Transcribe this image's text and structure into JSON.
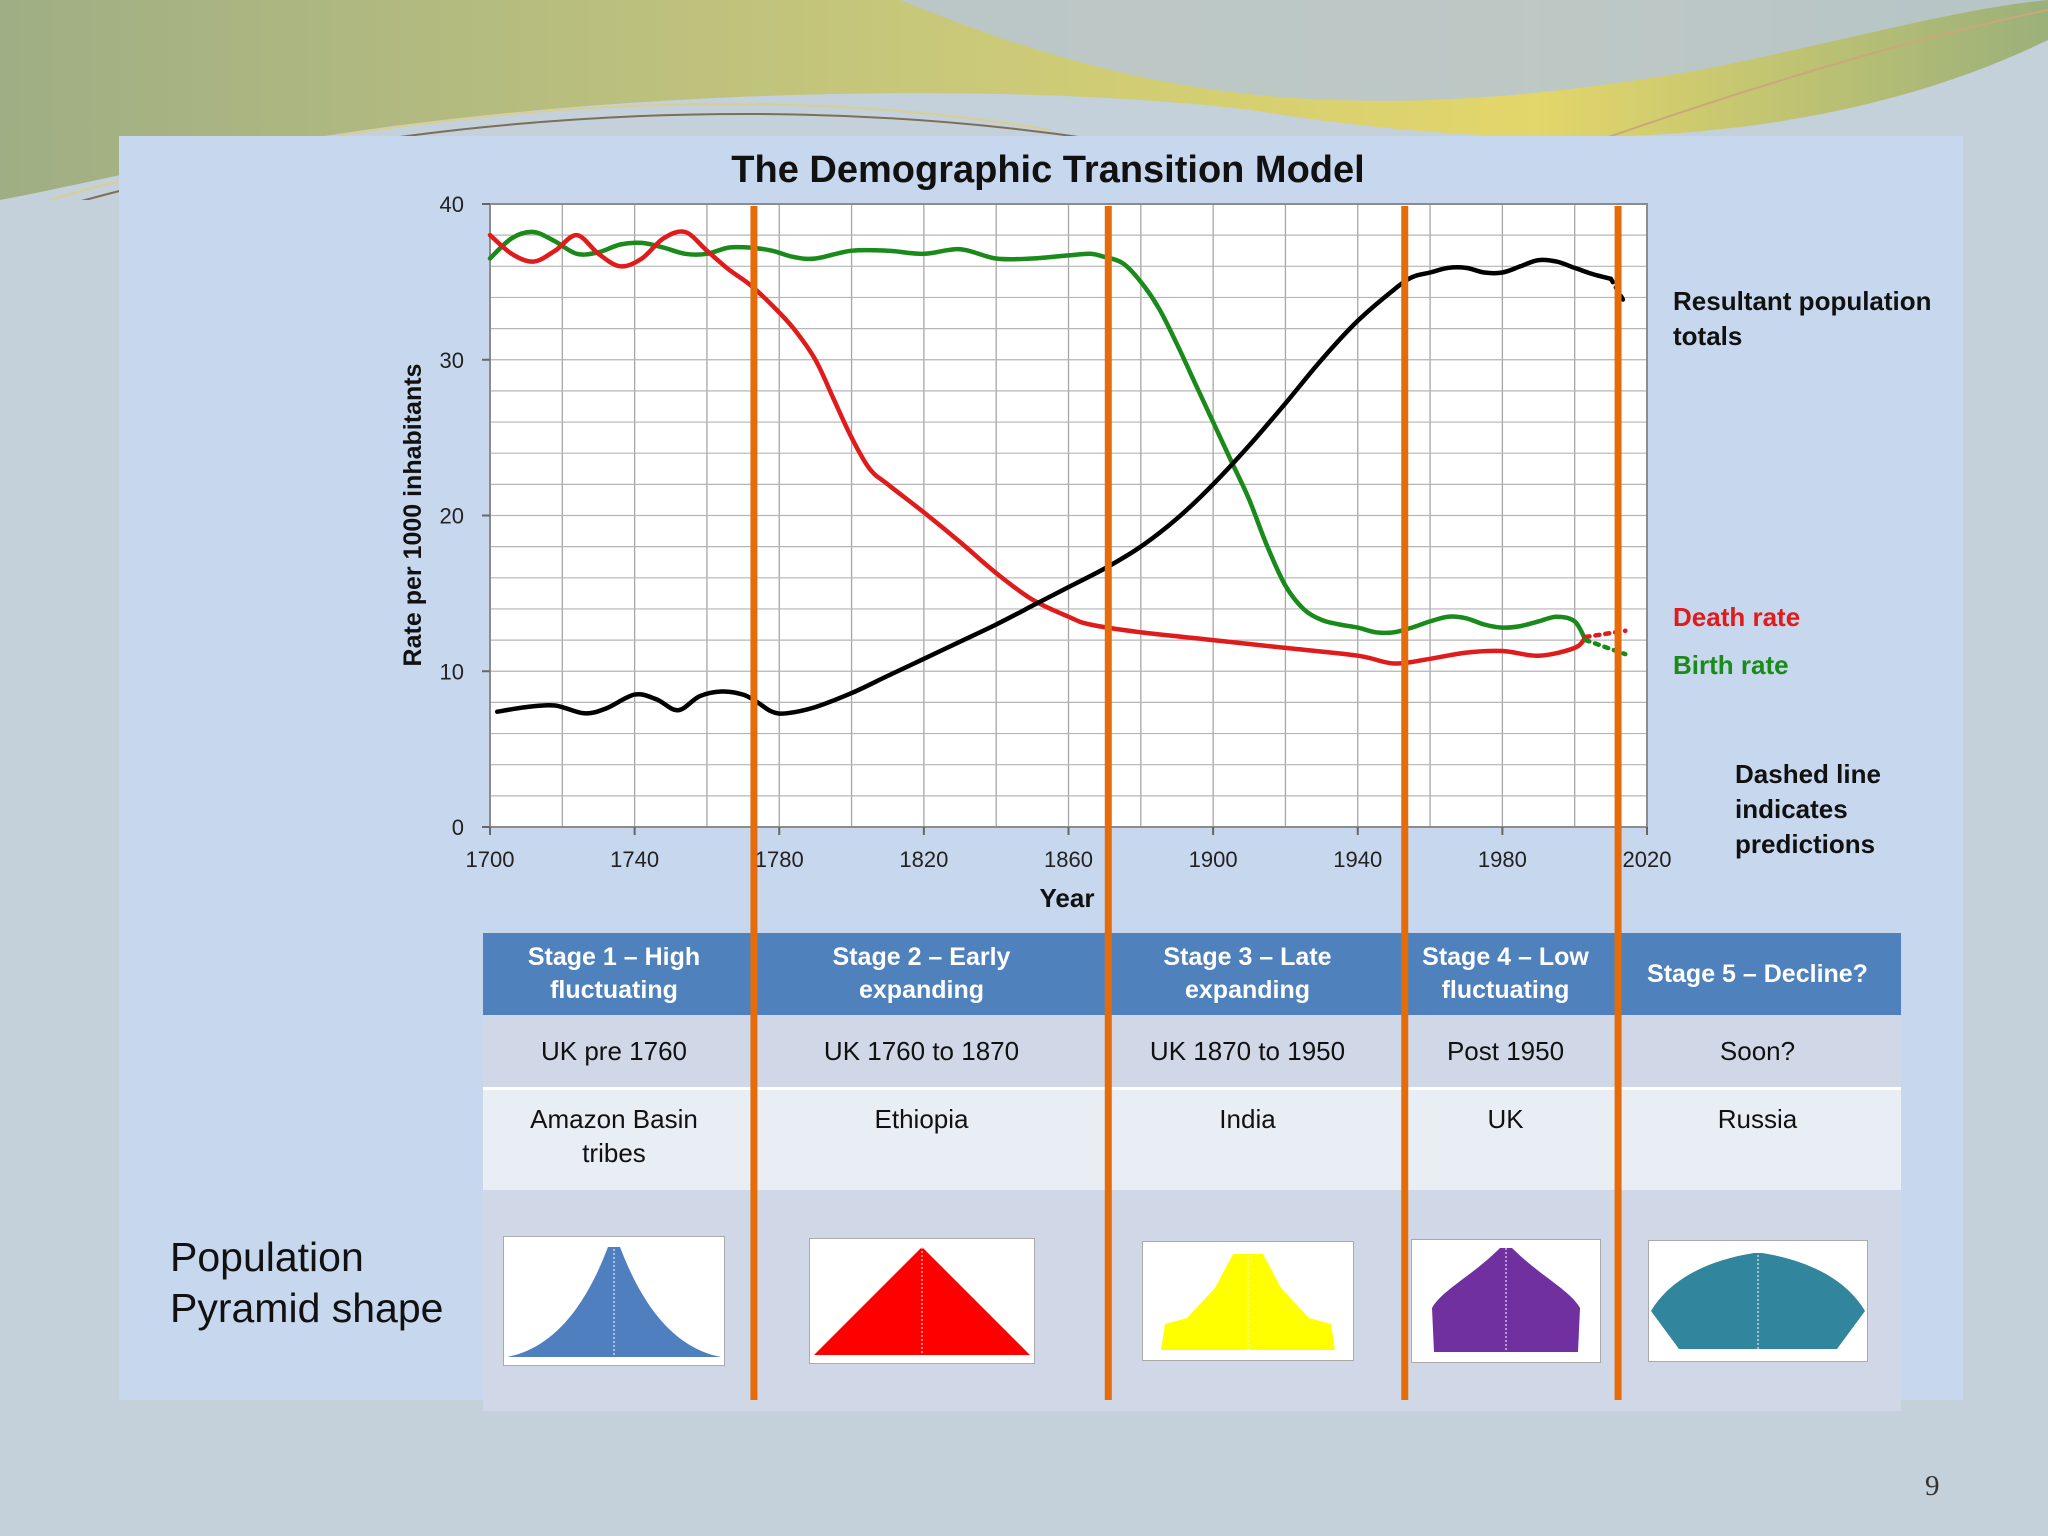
{
  "slide_number": "9",
  "pyramid_label_line1": "Population",
  "pyramid_label_line2": "Pyramid shape",
  "chart_data": {
    "type": "line",
    "title": "The Demographic Transition Model",
    "xlabel": "Year",
    "ylabel": "Rate per 1000 inhabitants",
    "xlim": [
      1700,
      2020
    ],
    "ylim": [
      0,
      40
    ],
    "xticks": [
      1700,
      1740,
      1780,
      1820,
      1860,
      1900,
      1940,
      1980,
      2020
    ],
    "yticks": [
      0,
      10,
      20,
      30,
      40
    ],
    "grid": true,
    "series": [
      {
        "name": "Birth rate",
        "color": "#1a8a1a",
        "x": [
          1700,
          1706,
          1712,
          1718,
          1724,
          1730,
          1736,
          1742,
          1748,
          1754,
          1760,
          1766,
          1772,
          1778,
          1784,
          1790,
          1800,
          1810,
          1820,
          1830,
          1840,
          1850,
          1860,
          1866,
          1870,
          1875,
          1880,
          1885,
          1890,
          1895,
          1900,
          1905,
          1910,
          1915,
          1920,
          1925,
          1930,
          1935,
          1940,
          1945,
          1950,
          1955,
          1960,
          1965,
          1970,
          1975,
          1980,
          1985,
          1990,
          1995,
          2000,
          2003
        ],
        "y": [
          36.5,
          37.8,
          38.2,
          37.6,
          36.8,
          36.9,
          37.4,
          37.5,
          37.2,
          36.8,
          36.8,
          37.2,
          37.2,
          37.0,
          36.6,
          36.5,
          37.0,
          37.0,
          36.8,
          37.1,
          36.5,
          36.5,
          36.7,
          36.8,
          36.6,
          36.2,
          35.0,
          33.3,
          31.0,
          28.5,
          26.0,
          23.5,
          21.0,
          18.0,
          15.5,
          14.0,
          13.3,
          13.0,
          12.8,
          12.5,
          12.5,
          12.8,
          13.2,
          13.5,
          13.4,
          13.0,
          12.8,
          12.9,
          13.2,
          13.5,
          13.2,
          12.0
        ]
      },
      {
        "name": "Death rate",
        "color": "#e01b1b",
        "x": [
          1700,
          1706,
          1712,
          1718,
          1724,
          1730,
          1736,
          1742,
          1748,
          1754,
          1760,
          1766,
          1772,
          1778,
          1784,
          1790,
          1795,
          1800,
          1805,
          1810,
          1820,
          1830,
          1840,
          1850,
          1860,
          1866,
          1880,
          1900,
          1920,
          1940,
          1950,
          1960,
          1970,
          1980,
          1990,
          2000,
          2003
        ],
        "y": [
          38.0,
          36.8,
          36.3,
          37.0,
          38.0,
          36.8,
          36.0,
          36.5,
          37.8,
          38.2,
          37.0,
          35.8,
          34.8,
          33.5,
          32.0,
          30.0,
          27.5,
          25.0,
          23.0,
          22.0,
          20.2,
          18.3,
          16.3,
          14.6,
          13.5,
          13.0,
          12.5,
          12.0,
          11.5,
          11.0,
          10.5,
          10.8,
          11.2,
          11.3,
          11.0,
          11.5,
          12.2
        ]
      },
      {
        "name": "Resultant population totals",
        "color": "#000000",
        "x": [
          1702,
          1710,
          1718,
          1726,
          1732,
          1740,
          1746,
          1752,
          1758,
          1764,
          1770,
          1774,
          1778,
          1782,
          1790,
          1800,
          1810,
          1820,
          1830,
          1840,
          1850,
          1860,
          1870,
          1880,
          1890,
          1900,
          1910,
          1920,
          1930,
          1940,
          1950,
          1955,
          1960,
          1965,
          1970,
          1975,
          1980,
          1985,
          1990,
          1995,
          2000,
          2005,
          2010
        ],
        "y": [
          7.4,
          7.7,
          7.8,
          7.3,
          7.6,
          8.5,
          8.2,
          7.5,
          8.4,
          8.7,
          8.5,
          8.0,
          7.4,
          7.3,
          7.7,
          8.6,
          9.7,
          10.8,
          11.9,
          13.0,
          14.2,
          15.4,
          16.6,
          18.0,
          19.8,
          22.0,
          24.5,
          27.2,
          30.0,
          32.5,
          34.5,
          35.3,
          35.6,
          35.9,
          35.9,
          35.6,
          35.6,
          36.0,
          36.4,
          36.3,
          35.9,
          35.5,
          35.2
        ]
      }
    ],
    "predictions": [
      {
        "name": "Death rate",
        "x": [
          2003,
          2014
        ],
        "y": [
          12.2,
          12.6
        ]
      },
      {
        "name": "Birth rate",
        "x": [
          2003,
          2014
        ],
        "y": [
          12.0,
          11.1
        ]
      },
      {
        "name": "Resultant population totals",
        "x": [
          2010,
          2014
        ],
        "y": [
          35.2,
          33.6
        ]
      }
    ],
    "stage_boundaries": [
      1773,
      1871,
      1953,
      2012
    ],
    "annotations": {
      "population": [
        "Resultant population",
        "totals"
      ],
      "death": "Death rate",
      "birth": "Birth rate",
      "dashed": [
        "Dashed line",
        "indicates",
        "predictions"
      ]
    }
  },
  "stages": [
    {
      "title": [
        "Stage 1 – High",
        "fluctuating"
      ],
      "period": "UK pre 1760",
      "example": [
        "Amazon Basin",
        "tribes"
      ],
      "pyramid_color": "#4f7fbf",
      "pyramid_shape": "concave"
    },
    {
      "title": [
        "Stage 2 – Early",
        "expanding"
      ],
      "period": "UK 1760 to 1870",
      "example": [
        "Ethiopia"
      ],
      "pyramid_color": "#ff0000",
      "pyramid_shape": "triangle"
    },
    {
      "title": [
        "Stage 3 – Late",
        "expanding"
      ],
      "period": "UK  1870 to 1950",
      "example": [
        "India"
      ],
      "pyramid_color": "#ffff00",
      "pyramid_shape": "late"
    },
    {
      "title": [
        "Stage 4 – Low",
        "fluctuating"
      ],
      "period": "Post 1950",
      "example": [
        "UK"
      ],
      "pyramid_color": "#7030a0",
      "pyramid_shape": "beehive"
    },
    {
      "title": [
        "Stage 5 – Decline?"
      ],
      "period": "Soon?",
      "example": [
        "Russia"
      ],
      "pyramid_color": "#31859c",
      "pyramid_shape": "inverted"
    }
  ]
}
